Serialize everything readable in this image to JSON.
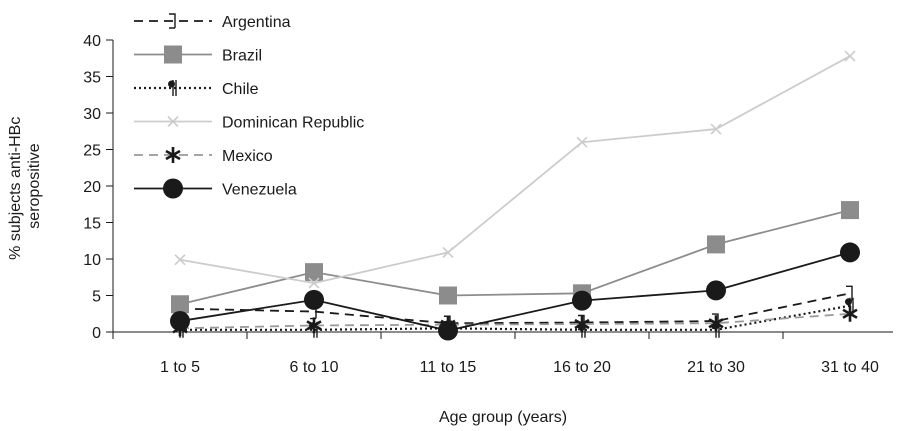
{
  "chart_data": {
    "type": "line",
    "title": "",
    "xlabel": "Age group (years)",
    "ylabel": "% subjects anti-HBc seropositive",
    "ylabel_lines": [
      "% subjects anti-HBc",
      "seropositive"
    ],
    "ylim": [
      0,
      40
    ],
    "yticks": [
      "0",
      "5",
      "10",
      "15",
      "20",
      "25",
      "30",
      "35",
      "40"
    ],
    "categories": [
      "1 to 5",
      "6 to 10",
      "11 to 15",
      "16 to 20",
      "21 to 30",
      "31 to 40"
    ],
    "grid": false,
    "legend_position": "top-left",
    "series": [
      {
        "name": "Argentina",
        "values": [
          3.2,
          2.8,
          1.2,
          1.3,
          1.5,
          5.3
        ],
        "color": "#1a1a1a",
        "dash": "dashed",
        "marker": "bracket"
      },
      {
        "name": "Brazil",
        "values": [
          3.8,
          8.2,
          5.0,
          5.3,
          12.0,
          16.7
        ],
        "color": "#8c8c8c",
        "dash": "solid",
        "marker": "square"
      },
      {
        "name": "Chile",
        "values": [
          0.3,
          0.3,
          0.5,
          0.3,
          0.3,
          3.6
        ],
        "color": "#1a1a1a",
        "dash": "dotted",
        "marker": "pilcrow"
      },
      {
        "name": "Dominican Republic",
        "values": [
          9.9,
          6.7,
          10.9,
          26.0,
          27.8,
          37.8
        ],
        "color": "#cccccc",
        "dash": "solid",
        "marker": "x"
      },
      {
        "name": "Mexico",
        "values": [
          0.5,
          0.9,
          1.0,
          1.1,
          1.2,
          2.5
        ],
        "color": "#9a9a9a",
        "dash": "dashed",
        "marker": "star"
      },
      {
        "name": "Venezuela",
        "values": [
          1.5,
          4.4,
          0.2,
          4.3,
          5.7,
          10.9
        ],
        "color": "#1a1a1a",
        "dash": "solid",
        "marker": "circle"
      }
    ]
  }
}
